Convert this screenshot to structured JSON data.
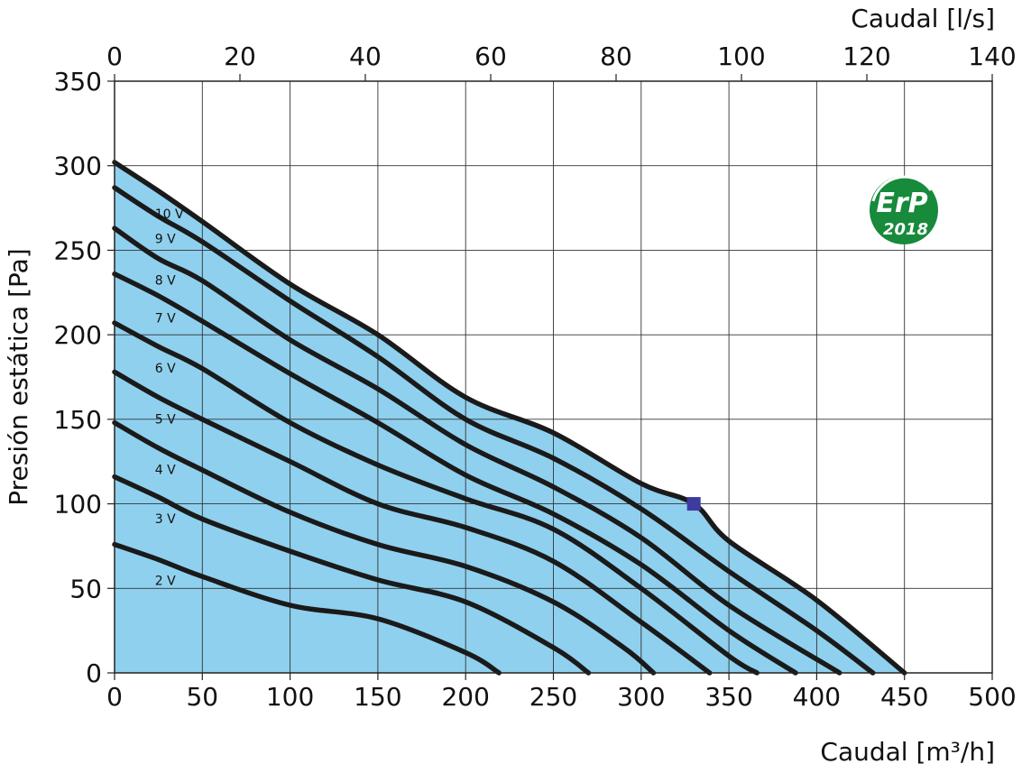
{
  "chart_data": {
    "type": "line",
    "title": "",
    "xlabel": "Caudal [m³/h]",
    "x2label": "Caudal [l/s]",
    "ylabel": "Presión estática [Pa]",
    "xlim": [
      0,
      500
    ],
    "x2lim": [
      0,
      140
    ],
    "ylim": [
      0,
      350
    ],
    "xticks": [
      0,
      50,
      100,
      150,
      200,
      250,
      300,
      350,
      400,
      450,
      500
    ],
    "x2ticks": [
      0,
      20,
      40,
      60,
      80,
      100,
      120,
      140
    ],
    "yticks": [
      0,
      50,
      100,
      150,
      200,
      250,
      300,
      350
    ],
    "grid": true,
    "fill_under_top_curve": "#8fd0ee",
    "series": [
      {
        "name": "10 V",
        "points": [
          [
            0,
            302
          ],
          [
            25,
            285
          ],
          [
            50,
            267
          ],
          [
            100,
            230
          ],
          [
            150,
            200
          ],
          [
            200,
            163
          ],
          [
            250,
            142
          ],
          [
            300,
            112
          ],
          [
            330,
            100
          ],
          [
            350,
            78
          ],
          [
            400,
            43
          ],
          [
            450,
            0
          ]
        ]
      },
      {
        "name": "9 V",
        "points": [
          [
            0,
            287
          ],
          [
            25,
            270
          ],
          [
            50,
            255
          ],
          [
            100,
            220
          ],
          [
            150,
            187
          ],
          [
            200,
            150
          ],
          [
            250,
            127
          ],
          [
            300,
            97
          ],
          [
            350,
            60
          ],
          [
            400,
            25
          ],
          [
            432,
            0
          ]
        ]
      },
      {
        "name": "8 V",
        "points": [
          [
            0,
            263
          ],
          [
            25,
            245
          ],
          [
            50,
            232
          ],
          [
            100,
            197
          ],
          [
            150,
            168
          ],
          [
            200,
            135
          ],
          [
            250,
            110
          ],
          [
            300,
            80
          ],
          [
            350,
            40
          ],
          [
            413,
            0
          ]
        ]
      },
      {
        "name": "7 V",
        "points": [
          [
            0,
            236
          ],
          [
            25,
            223
          ],
          [
            50,
            208
          ],
          [
            100,
            177
          ],
          [
            150,
            148
          ],
          [
            200,
            117
          ],
          [
            250,
            94
          ],
          [
            300,
            64
          ],
          [
            350,
            25
          ],
          [
            388,
            0
          ]
        ]
      },
      {
        "name": "6 V",
        "points": [
          [
            0,
            207
          ],
          [
            25,
            193
          ],
          [
            50,
            180
          ],
          [
            100,
            148
          ],
          [
            150,
            123
          ],
          [
            200,
            103
          ],
          [
            250,
            85
          ],
          [
            300,
            50
          ],
          [
            350,
            10
          ],
          [
            366,
            0
          ]
        ]
      },
      {
        "name": "5 V",
        "points": [
          [
            0,
            178
          ],
          [
            25,
            163
          ],
          [
            50,
            150
          ],
          [
            100,
            125
          ],
          [
            150,
            100
          ],
          [
            200,
            86
          ],
          [
            250,
            66
          ],
          [
            300,
            30
          ],
          [
            339,
            0
          ]
        ]
      },
      {
        "name": "4 V",
        "points": [
          [
            0,
            148
          ],
          [
            25,
            133
          ],
          [
            50,
            120
          ],
          [
            100,
            95
          ],
          [
            150,
            76
          ],
          [
            200,
            63
          ],
          [
            250,
            42
          ],
          [
            290,
            15
          ],
          [
            307,
            0
          ]
        ]
      },
      {
        "name": "3 V",
        "points": [
          [
            0,
            116
          ],
          [
            25,
            104
          ],
          [
            50,
            91
          ],
          [
            100,
            72
          ],
          [
            150,
            55
          ],
          [
            200,
            42
          ],
          [
            250,
            15
          ],
          [
            270,
            0
          ]
        ]
      },
      {
        "name": "2 V",
        "points": [
          [
            0,
            76
          ],
          [
            25,
            67
          ],
          [
            50,
            57
          ],
          [
            100,
            40
          ],
          [
            150,
            32
          ],
          [
            200,
            12
          ],
          [
            219,
            0
          ]
        ]
      }
    ],
    "marker": {
      "x": 330,
      "y": 100,
      "shape": "square",
      "color": "#3d3aa0"
    }
  },
  "badge": {
    "line1": "ErP",
    "line2": "2018",
    "color": "#178a3c"
  }
}
